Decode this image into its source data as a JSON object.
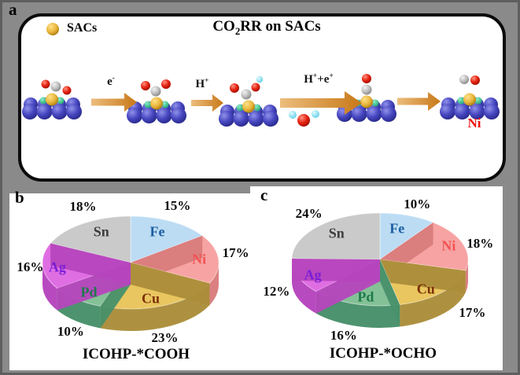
{
  "background": {
    "page": "#8a8a8a",
    "frame": "#5e5e5e",
    "panel": "#ffffff"
  },
  "panels": {
    "a": "a",
    "b": "b",
    "c": "c"
  },
  "panel_a": {
    "legend": {
      "swatch": "gold-sphere",
      "label": "SACs"
    },
    "title": {
      "pre": "CO",
      "sub": "2",
      "post": "RR on SACs"
    },
    "arrows": [
      {
        "base": "e",
        "sup": "-"
      },
      {
        "base": "H",
        "sup": "+"
      },
      {
        "base": "H",
        "sup": "+",
        "base2": "+e",
        "sup2": "+"
      },
      {
        "base": "",
        "sup": ""
      }
    ],
    "product_label": "Ni",
    "product_color": "#ee1212",
    "atom_colors": {
      "substrate": "#4646c0",
      "sac": "#e8b53a",
      "dopant": "#2db583",
      "oxygen": "#e62211",
      "carbon": "#b9b9b9",
      "hydrogen": "#7adef0"
    },
    "arrow_color": "#cf7f1f"
  },
  "chart_data": [
    {
      "type": "pie",
      "variant": "3d",
      "title": "ICOHP-*COOH",
      "categories": [
        "Fe",
        "Ni",
        "Cu",
        "Pd",
        "Ag",
        "Sn"
      ],
      "values": [
        15,
        17,
        23,
        10,
        16,
        18
      ],
      "unit": "%",
      "start_angle_deg": 0,
      "direction": "clockwise",
      "legend_position": "none",
      "slice_colors_top": [
        "#bcdcf4",
        "#f7a3a3",
        "#e9c65f",
        "#84c197",
        "#df6ee3",
        "#cacaca"
      ],
      "slice_colors_side": [
        "#85b9de",
        "#d97c7c",
        "#ab8d3a",
        "#47906a",
        "#b644bd",
        "#a0a0a0"
      ],
      "label_colors": [
        "#1d5fa0",
        "#f25252",
        "#7c3008",
        "#1f7a4c",
        "#7b1fd6",
        "#3d3d3d"
      ]
    },
    {
      "type": "pie",
      "variant": "3d",
      "title": "ICOHP-*OCHO",
      "categories": [
        "Fe",
        "Ni",
        "Cu",
        "Pd",
        "Ag",
        "Sn"
      ],
      "values": [
        10,
        18,
        17,
        16,
        12,
        24
      ],
      "unit": "%",
      "start_angle_deg": 0,
      "direction": "clockwise",
      "legend_position": "none",
      "slice_colors_top": [
        "#bcdcf4",
        "#f7a3a3",
        "#e9c65f",
        "#84c197",
        "#df6ee3",
        "#cacaca"
      ],
      "slice_colors_side": [
        "#85b9de",
        "#d97c7c",
        "#ab8d3a",
        "#47906a",
        "#b644bd",
        "#a0a0a0"
      ],
      "label_colors": [
        "#1d5fa0",
        "#f25252",
        "#7c3008",
        "#1f7a4c",
        "#7b1fd6",
        "#3d3d3d"
      ]
    }
  ]
}
